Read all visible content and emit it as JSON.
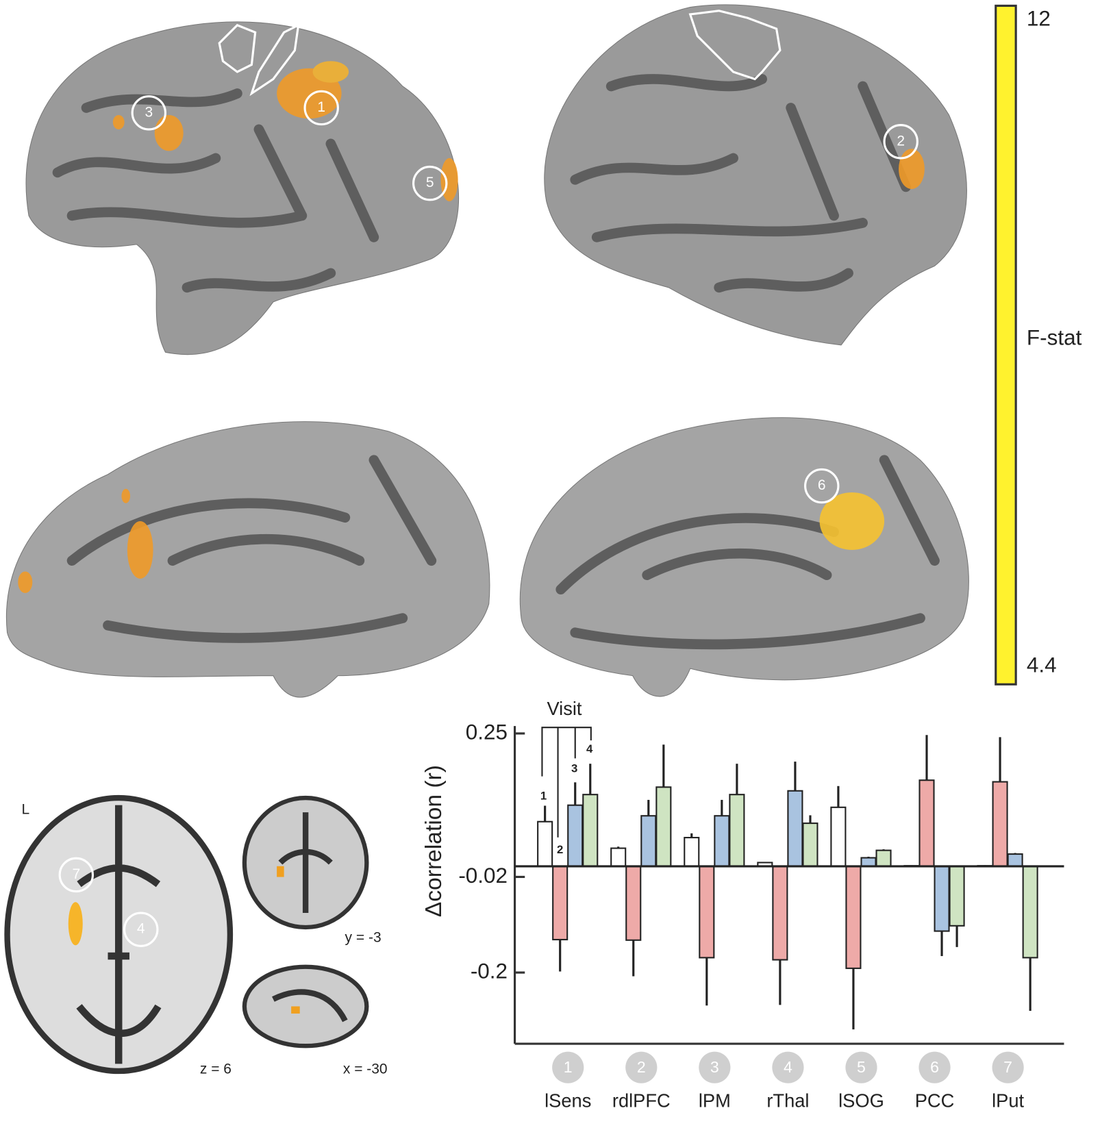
{
  "brain_panels": {
    "markers": [
      "3",
      "1",
      "5",
      "2",
      "6",
      "7",
      "4"
    ],
    "orientation_label": "L",
    "slice_labels": [
      "z = 6",
      "y = -3",
      "x = -30"
    ]
  },
  "colorbar": {
    "label": "F-stat",
    "ticks": [
      12,
      4.4
    ],
    "colors": [
      "#fff22e",
      "#f0a020",
      "#e07020",
      "#d02020"
    ]
  },
  "chart_data": {
    "type": "bar",
    "y_label": "Δcorrelation (r)",
    "legend_title": "Visit",
    "categories": [
      "lSens",
      "rdlPFC",
      "lPM",
      "rThal",
      "lSOG",
      "PCC",
      "lPut"
    ],
    "category_numbers": [
      "1",
      "2",
      "3",
      "4",
      "5",
      "6",
      "7"
    ],
    "series": [
      {
        "name": "1",
        "color": "#ffffff",
        "values": [
          0.084,
          0.034,
          0.054,
          0.007,
          0.111,
          0.001,
          0.001
        ],
        "errors": [
          0.03,
          0.003,
          0.008,
          0.001,
          0.04,
          0.001,
          0.001
        ]
      },
      {
        "name": "2",
        "color": "#eeaaa8",
        "values": [
          -0.138,
          -0.139,
          -0.172,
          -0.176,
          -0.192,
          0.162,
          0.159
        ],
        "errors": [
          0.06,
          0.068,
          0.09,
          0.085,
          0.115,
          0.085,
          0.084
        ]
      },
      {
        "name": "3",
        "color": "#a9c3e0",
        "values": [
          0.115,
          0.095,
          0.095,
          0.142,
          0.016,
          -0.122,
          0.023
        ],
        "errors": [
          0.043,
          0.03,
          0.03,
          0.055,
          0.002,
          0.047,
          0.002
        ]
      },
      {
        "name": "4",
        "color": "#cfe4c2",
        "values": [
          0.135,
          0.149,
          0.135,
          0.081,
          0.03,
          -0.112,
          -0.172
        ],
        "errors": [
          0.058,
          0.08,
          0.058,
          0.015,
          0.002,
          0.04,
          0.1
        ]
      }
    ],
    "ylim": [
      -0.334,
      0.264
    ],
    "yticks": [
      0.25,
      -0.02,
      -0.2
    ]
  }
}
